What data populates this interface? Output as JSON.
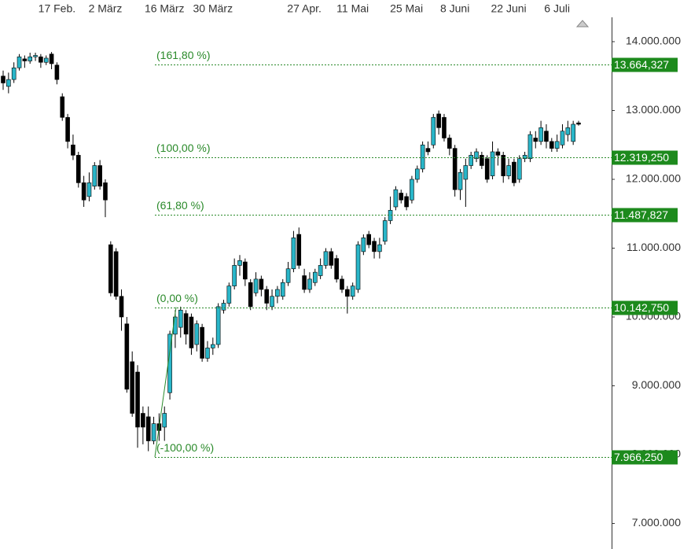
{
  "chart_data": {
    "type": "candlestick",
    "categories": [
      null,
      null,
      null,
      null,
      null,
      null,
      null,
      null,
      null,
      null,
      "17 Feb.",
      null,
      null,
      null,
      null,
      null,
      null,
      null,
      null,
      "2 März",
      null,
      null,
      null,
      null,
      null,
      null,
      null,
      null,
      null,
      null,
      "16 März",
      null,
      null,
      null,
      null,
      null,
      null,
      null,
      null,
      "30 März",
      null,
      null,
      null,
      null,
      null,
      null,
      null,
      null,
      null,
      null,
      null,
      null,
      null,
      null,
      null,
      null,
      "27 Apr.",
      null,
      null,
      null,
      null,
      null,
      null,
      null,
      null,
      "11 Mai",
      null,
      null,
      null,
      null,
      null,
      null,
      null,
      null,
      null,
      "25 Mai",
      null,
      null,
      null,
      null,
      null,
      null,
      null,
      null,
      "8 Juni",
      null,
      null,
      null,
      null,
      null,
      null,
      null,
      null,
      null,
      "22 Juni",
      null,
      null,
      null,
      null,
      null,
      null,
      null,
      null,
      "6 Juli",
      null,
      null,
      null,
      null
    ],
    "open": [
      13500000,
      13350000,
      13450000,
      13620000,
      13750000,
      13720000,
      13780000,
      13780000,
      13700000,
      13820000,
      13660000,
      13200000,
      12900000,
      12500000,
      12350000,
      11950000,
      11750000,
      11900000,
      12200000,
      11950000,
      11050000,
      10950000,
      10300000,
      9900000,
      9350000,
      9200000,
      8600000,
      8550000,
      8200000,
      8450000,
      8400000,
      8900000,
      9750000,
      9850000,
      10050000,
      10000000,
      9600000,
      9850000,
      9400000,
      9550000,
      9600000,
      10100000,
      10200000,
      10450000,
      10750000,
      10800000,
      10500000,
      10350000,
      10550000,
      10400000,
      10150000,
      10300000,
      10300000,
      10500000,
      10700000,
      11200000,
      10600000,
      10400000,
      10500000,
      10600000,
      10750000,
      10950000,
      10850000,
      10550000,
      10400000,
      10300000,
      10400000,
      10950000,
      11200000,
      11100000,
      10950000,
      11100000,
      11400000,
      11600000,
      11800000,
      11750000,
      11700000,
      12000000,
      12150000,
      12450000,
      12500000,
      12950000,
      12900000,
      12600000,
      12450000,
      11850000,
      12000000,
      12200000,
      12300000,
      12350000,
      12300000,
      12050000,
      12400000,
      12350000,
      12050000,
      12250000,
      12000000,
      12300000,
      12300000,
      12600000,
      12550000,
      12700000,
      12550000,
      12450000,
      12500000,
      12650000,
      12550000,
      12820000
    ],
    "high": [
      13580000,
      13550000,
      13700000,
      13820000,
      13800000,
      13840000,
      13840000,
      13820000,
      13800000,
      13850000,
      13700000,
      13250000,
      12950000,
      12650000,
      12400000,
      12050000,
      12100000,
      12250000,
      12280000,
      12000000,
      11100000,
      11000000,
      10400000,
      10000000,
      9500000,
      9300000,
      8700000,
      8700000,
      8550000,
      8600000,
      8700000,
      9800000,
      10100000,
      10150000,
      10100000,
      10050000,
      9950000,
      9900000,
      9650000,
      9700000,
      10200000,
      10250000,
      10500000,
      10850000,
      10900000,
      10850000,
      10550000,
      10650000,
      10600000,
      10450000,
      10400000,
      10450000,
      10550000,
      10800000,
      11250000,
      11300000,
      10700000,
      10650000,
      10700000,
      10850000,
      11000000,
      11000000,
      10900000,
      10600000,
      10450000,
      10500000,
      11100000,
      11200000,
      11250000,
      11150000,
      11150000,
      11450000,
      11750000,
      11900000,
      11850000,
      11800000,
      12050000,
      12200000,
      12550000,
      12550000,
      12950000,
      13000000,
      12950000,
      12650000,
      12500000,
      12150000,
      12300000,
      12400000,
      12450000,
      12400000,
      12350000,
      12550000,
      12450000,
      12400000,
      12300000,
      12300000,
      12350000,
      12400000,
      12700000,
      12700000,
      12850000,
      12800000,
      12600000,
      12650000,
      12800000,
      12850000,
      12850000,
      12850000
    ],
    "low": [
      13300000,
      13250000,
      13400000,
      13580000,
      13620000,
      13680000,
      13720000,
      13620000,
      13660000,
      13600000,
      13380000,
      12850000,
      12450000,
      12280000,
      11880000,
      11600000,
      11680000,
      11850000,
      11850000,
      11450000,
      10300000,
      10250000,
      9800000,
      8900000,
      8550000,
      8100000,
      8150000,
      8050000,
      8150000,
      8200000,
      8200000,
      8800000,
      9550000,
      9700000,
      9600000,
      9450000,
      9500000,
      9350000,
      9350000,
      9450000,
      9550000,
      10050000,
      10150000,
      10400000,
      10600000,
      10450000,
      10100000,
      10300000,
      10300000,
      10100000,
      10100000,
      10200000,
      10250000,
      10450000,
      10650000,
      10700000,
      10350000,
      10350000,
      10450000,
      10550000,
      10700000,
      10700000,
      10500000,
      10350000,
      10050000,
      10250000,
      10350000,
      10900000,
      11000000,
      10850000,
      10850000,
      11050000,
      11350000,
      11550000,
      11650000,
      11550000,
      11650000,
      11950000,
      12100000,
      12350000,
      12450000,
      12650000,
      12550000,
      12350000,
      11750000,
      11700000,
      11600000,
      12150000,
      12250000,
      12150000,
      11950000,
      12000000,
      12200000,
      11950000,
      12000000,
      11900000,
      11950000,
      12250000,
      12250000,
      12450000,
      12500000,
      12450000,
      12400000,
      12400000,
      12450000,
      12550000,
      12500000,
      12780000
    ],
    "close": [
      13400000,
      13450000,
      13620000,
      13780000,
      13720000,
      13780000,
      13800000,
      13700000,
      13760000,
      13680000,
      13450000,
      12900000,
      12550000,
      12350000,
      11950000,
      11700000,
      11950000,
      12200000,
      11900000,
      11700000,
      10350000,
      10300000,
      10000000,
      8950000,
      8600000,
      8400000,
      8400000,
      8200000,
      8450000,
      8350000,
      8600000,
      9750000,
      10000000,
      10100000,
      9750000,
      9550000,
      9900000,
      9400000,
      9550000,
      9600000,
      10150000,
      10200000,
      10450000,
      10750000,
      10820000,
      10550000,
      10150000,
      10550000,
      10400000,
      10200000,
      10300000,
      10400000,
      10500000,
      10700000,
      11150000,
      10750000,
      10400000,
      10550000,
      10650000,
      10750000,
      10950000,
      10750000,
      10550000,
      10400000,
      10300000,
      10450000,
      11050000,
      11150000,
      11050000,
      10950000,
      11050000,
      11400000,
      11550000,
      11850000,
      11700000,
      11600000,
      12000000,
      12150000,
      12500000,
      12400000,
      12900000,
      12750000,
      12600000,
      12450000,
      11850000,
      12100000,
      12200000,
      12350000,
      12400000,
      12200000,
      12000000,
      12400000,
      12350000,
      12050000,
      12200000,
      11950000,
      12300000,
      12350000,
      12650000,
      12550000,
      12750000,
      12550000,
      12450000,
      12550000,
      12700000,
      12750000,
      12800000,
      12800000
    ],
    "up_color": "#29b6c9",
    "down_color": "#000000",
    "level_color": "#2a8a2a",
    "ylim": [
      6629000,
      14354000
    ],
    "yticks": [
      {
        "value": 14000000,
        "label": "14.000.000"
      },
      {
        "value": 13000000,
        "label": "13.000.000"
      },
      {
        "value": 12000000,
        "label": "12.000.000"
      },
      {
        "value": 11000000,
        "label": "11.000.000"
      },
      {
        "value": 10000000,
        "label": "10.000.000"
      },
      {
        "value": 9000000,
        "label": "9.000.000"
      },
      {
        "value": 8000000,
        "label": "8.000.000"
      },
      {
        "value": 7000000,
        "label": "7.000.000"
      }
    ],
    "fib_levels": [
      {
        "name": "(161,80 %)",
        "value": 13664327,
        "label": "13.664,327"
      },
      {
        "name": "(100,00 %)",
        "value": 12319250,
        "label": "12.319,250"
      },
      {
        "name": "(61,80 %)",
        "value": 11487827,
        "label": "11.487,827"
      },
      {
        "name": "(0,00 %)",
        "value": 10142750,
        "label": "10.142,750"
      },
      {
        "name": "(-100,00 %)",
        "value": 7966250,
        "label": "7.966,250"
      }
    ]
  }
}
